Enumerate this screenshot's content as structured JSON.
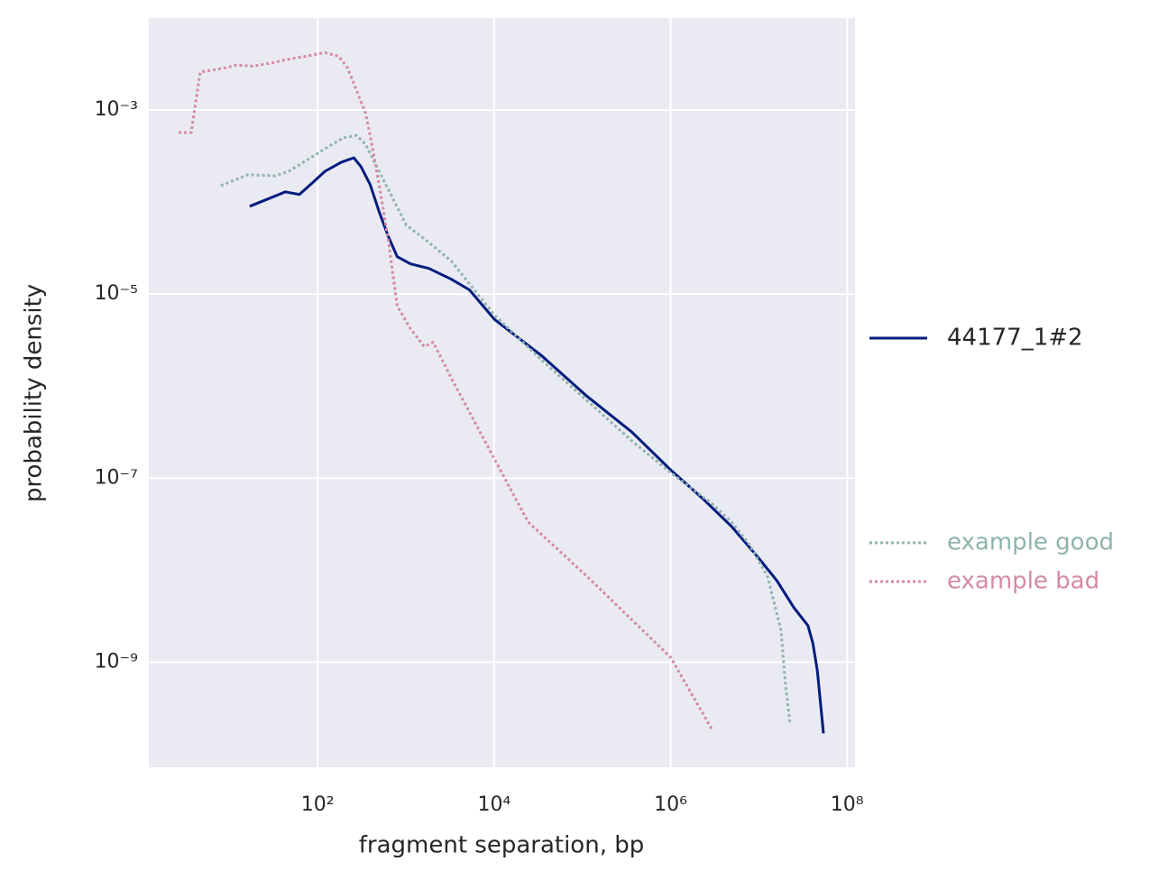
{
  "chart_data": {
    "type": "line",
    "x_label": "fragment separation, bp",
    "y_label": "probability density",
    "log_x": true,
    "log_y": true,
    "grid": true,
    "xlim": [
      1.22,
      123000000.0
    ],
    "ylim": [
      7.2e-11,
      0.01
    ],
    "xticks": [
      {
        "value": 100,
        "label": "10²"
      },
      {
        "value": 10000,
        "label": "10⁴"
      },
      {
        "value": 1000000,
        "label": "10⁶"
      },
      {
        "value": 100000000,
        "label": "10⁸"
      }
    ],
    "yticks": [
      {
        "value": 0.001,
        "label": "10⁻³"
      },
      {
        "value": 1e-05,
        "label": "10⁻⁵"
      },
      {
        "value": 1e-07,
        "label": "10⁻⁷"
      },
      {
        "value": 1e-09,
        "label": "10⁻⁹"
      }
    ],
    "legend": "right",
    "series": [
      {
        "name": "44177_1#2",
        "color": "#001c7f",
        "linestyle": "solid",
        "x": [
          17,
          43,
          62,
          85,
          121,
          185,
          257,
          310,
          393,
          497,
          628,
          796,
          1130,
          1820,
          3270,
          5250,
          10100,
          34500,
          112000,
          365000,
          1000000,
          2400000,
          4900000,
          9900000,
          16000000,
          25000000,
          36000000,
          41000000,
          46000000,
          54000000
        ],
        "values": [
          9e-05,
          0.000129,
          0.000121,
          0.000158,
          0.000216,
          0.000271,
          0.000303,
          0.000242,
          0.000155,
          7.9e-05,
          4.28e-05,
          2.55e-05,
          2.13e-05,
          1.9e-05,
          1.45e-05,
          1.11e-05,
          5.3e-06,
          2.14e-06,
          7.8e-07,
          3.16e-07,
          1.23e-07,
          5.8e-08,
          2.98e-08,
          1.36e-08,
          7.7e-09,
          3.9e-09,
          2.5e-09,
          1.6e-09,
          8.1e-10,
          1.68e-10
        ]
      },
      {
        "name": "example good",
        "color": "#8fb3ae",
        "linestyle": "dotted",
        "x": [
          8.0,
          16.3,
          33,
          47,
          75,
          121,
          194,
          275,
          349,
          441,
          558,
          796,
          1010,
          1610,
          3270,
          10100,
          34500,
          112000,
          365000,
          1000000,
          3000000,
          4900000,
          7800000,
          12500000,
          17800000,
          20000000,
          22500000
        ],
        "values": [
          0.000151,
          0.000198,
          0.000193,
          0.000216,
          0.000284,
          0.00038,
          0.000498,
          0.00053,
          0.000425,
          0.000271,
          0.000173,
          8.8e-05,
          5.6e-05,
          4e-05,
          2.28e-05,
          5.9e-06,
          1.92e-06,
          7e-07,
          2.53e-07,
          1.15e-07,
          5.2e-08,
          3.33e-08,
          1.9e-08,
          8.6e-09,
          2.24e-09,
          5.8e-10,
          2.2e-10
        ]
      },
      {
        "name": "example bad",
        "color": "#d48aa6",
        "linestyle": "dotted",
        "x": [
          2.65,
          3.69,
          4.67,
          9.0,
          12,
          18.3,
          29,
          43,
          75,
          121,
          172,
          218,
          275,
          349,
          411,
          497,
          628,
          796,
          1130,
          1610,
          2040,
          3270,
          10100,
          24300,
          112000,
          1000000,
          3000000
        ],
        "values": [
          0.00057,
          0.00057,
          0.00258,
          0.00288,
          0.00308,
          0.003,
          0.00322,
          0.00352,
          0.00386,
          0.0042,
          0.00386,
          0.00288,
          0.00164,
          0.00093,
          0.000425,
          0.000155,
          4e-05,
          7.4e-06,
          4.2e-06,
          2.69e-06,
          3e-06,
          1.22e-06,
          1.61e-07,
          3.33e-08,
          8.6e-09,
          1.13e-09,
          1.8e-10
        ]
      }
    ]
  }
}
